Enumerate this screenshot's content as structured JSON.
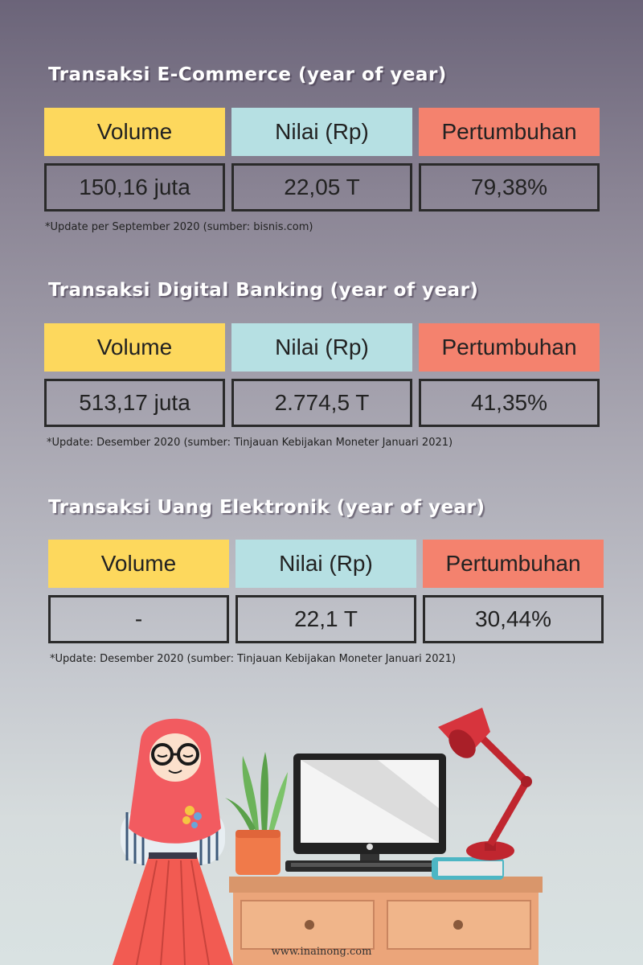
{
  "sections": [
    {
      "title": "Transaksi E-Commerce (year of year)",
      "headers": [
        "Volume",
        "Nilai (Rp)",
        "Pertumbuhan"
      ],
      "values": [
        "150,16 juta",
        "22,05 T",
        "79,38%"
      ],
      "note": "*Update per September 2020 (sumber: bisnis.com)"
    },
    {
      "title": "Transaksi Digital Banking (year of year)",
      "headers": [
        "Volume",
        "Nilai (Rp)",
        "Pertumbuhan"
      ],
      "values": [
        "513,17 juta",
        "2.774,5 T",
        "41,35%"
      ],
      "note": "*Update: Desember 2020 (sumber: Tinjauan Kebijakan Moneter Januari 2021)"
    },
    {
      "title": "Transaksi Uang Elektronik (year of year)",
      "headers": [
        "Volume",
        "Nilai (Rp)",
        "Pertumbuhan"
      ],
      "values": [
        "-",
        "22,1 T",
        "30,44%"
      ],
      "note": "*Update: Desember 2020 (sumber: Tinjauan Kebijakan Moneter Januari 2021)"
    }
  ],
  "footer": "www.inainong.com",
  "colors": {
    "volume_header": "#fdd85d",
    "nilai_header": "#b6e0e3",
    "pertumbuhan_header": "#f4826e",
    "title_text": "#ffffff"
  },
  "illustration": {
    "icons": [
      "woman-hijab-icon",
      "plant-pot-icon",
      "computer-monitor-icon",
      "desk-lamp-icon",
      "book-icon",
      "desk-icon"
    ]
  }
}
